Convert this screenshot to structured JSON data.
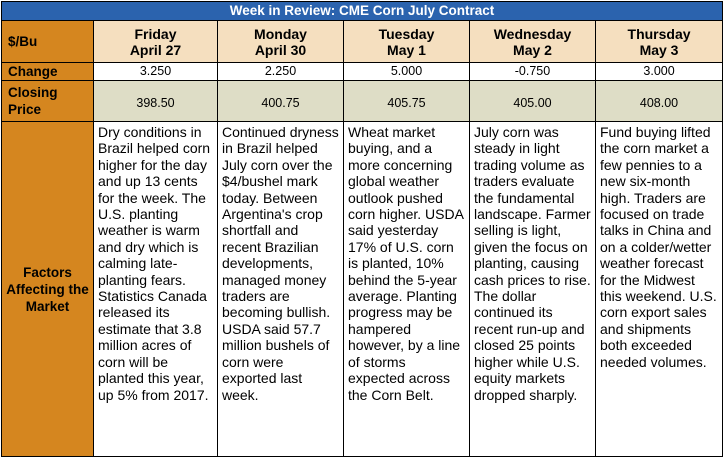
{
  "title": "Week in Review: CME Corn July Contract",
  "unit_label": "$/Bu",
  "row_labels": {
    "change": "Change",
    "closing": "Closing Price",
    "factors": "Factors Affecting the Market"
  },
  "days": [
    {
      "weekday": "Friday",
      "date": "April 27",
      "change": "3.250",
      "closing": "398.50",
      "factors": "Dry conditions in Brazil helped corn higher for the day and up 13 cents for the week. The U.S. planting weather is warm and dry which is calming late-planting fears. Statistics Canada released its estimate that 3.8 million acres of corn will be planted this year, up 5% from 2017."
    },
    {
      "weekday": "Monday",
      "date": "April 30",
      "change": "2.250",
      "closing": "400.75",
      "factors": "Continued dryness in Brazil helped July corn over the $4/bushel mark today. Between Argentina's crop shortfall and recent Brazilian developments, managed money traders are becoming bullish. USDA said 57.7 million bushels of corn were exported last week."
    },
    {
      "weekday": "Tuesday",
      "date": "May 1",
      "change": "5.000",
      "closing": "405.75",
      "factors": "Wheat market buying, and a more concerning global weather outlook pushed corn higher. USDA said yesterday 17% of U.S. corn is planted, 10% behind the 5-year average. Planting progress may be hampered however, by a line of storms expected across the Corn Belt."
    },
    {
      "weekday": "Wednesday",
      "date": "May 2",
      "change": "-0.750",
      "closing": "405.00",
      "factors": "July corn was steady in light trading volume as traders evaluate the fundamental landscape. Farmer selling is light, given the focus on planting, causing cash prices to rise. The dollar continued its recent run-up and closed 25 points higher while U.S. equity markets dropped sharply."
    },
    {
      "weekday": "Thursday",
      "date": "May 3",
      "change": "3.000",
      "closing": "408.00",
      "factors": "Fund buying lifted the corn market a few pennies to a new six-month high. Traders are focused on trade talks in China and on a colder/wetter weather forecast for the Midwest this weekend. U.S. corn export sales and shipments both exceeded needed volumes."
    }
  ],
  "colors": {
    "title_bg": "#2b63ae",
    "row_label_bg": "#d5861f",
    "day_header_bg": "#f5dfbf",
    "closing_bg": "#deddc6"
  }
}
